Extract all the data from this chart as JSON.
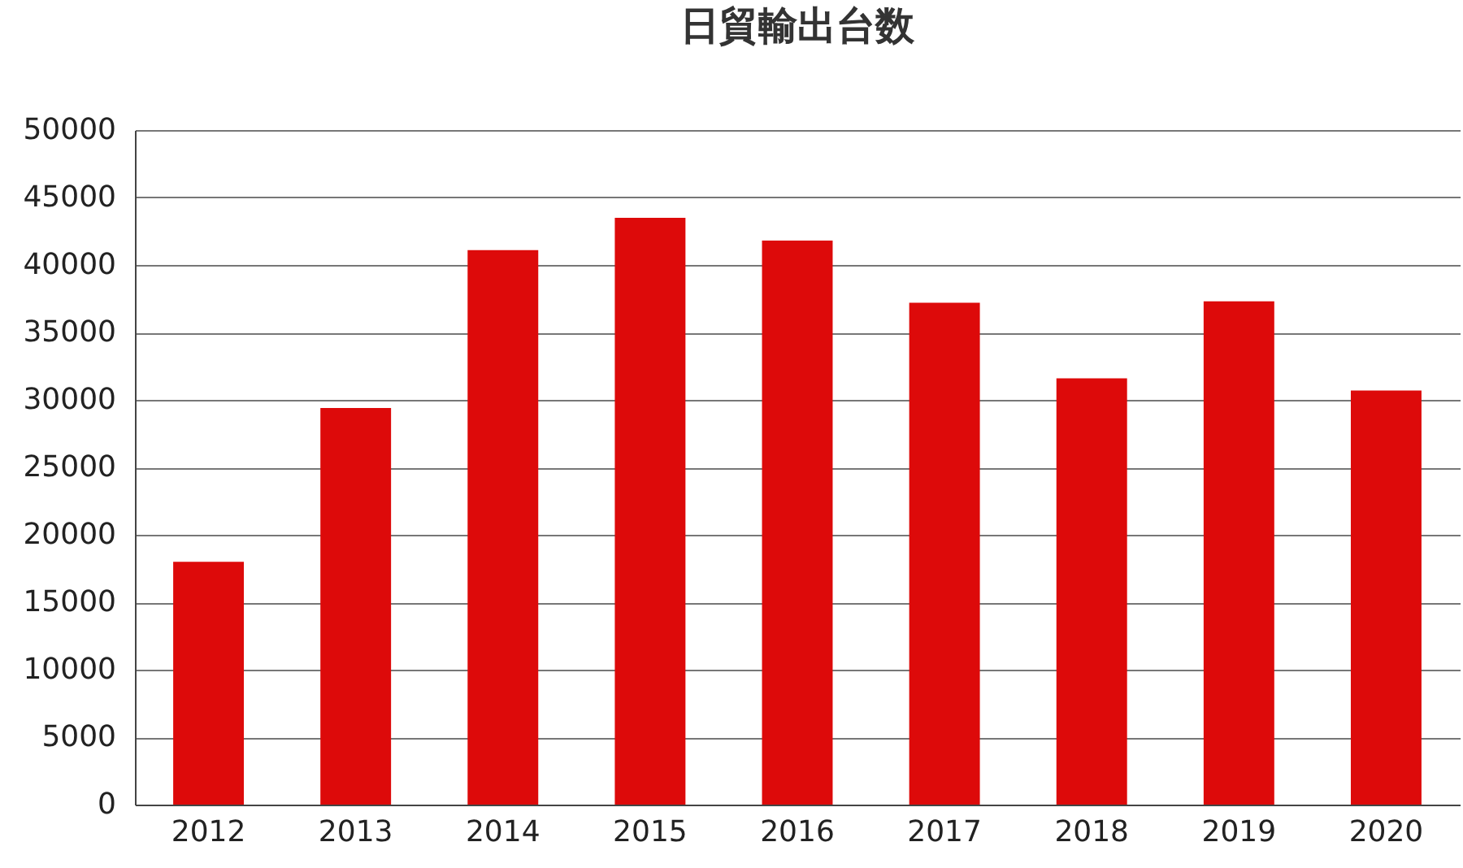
{
  "chart_data": {
    "type": "bar",
    "title": "日貿輸出台数",
    "categories": [
      "2012",
      "2013",
      "2014",
      "2015",
      "2016",
      "2017",
      "2018",
      "2019",
      "2020"
    ],
    "values": [
      18000,
      29400,
      41100,
      43500,
      41800,
      37200,
      31600,
      37300,
      30700
    ],
    "color": "#dd0a0a",
    "ylim": [
      0,
      50000
    ],
    "yticks": [
      0,
      5000,
      10000,
      15000,
      20000,
      25000,
      30000,
      35000,
      40000,
      45000,
      50000
    ],
    "grid": "y"
  }
}
